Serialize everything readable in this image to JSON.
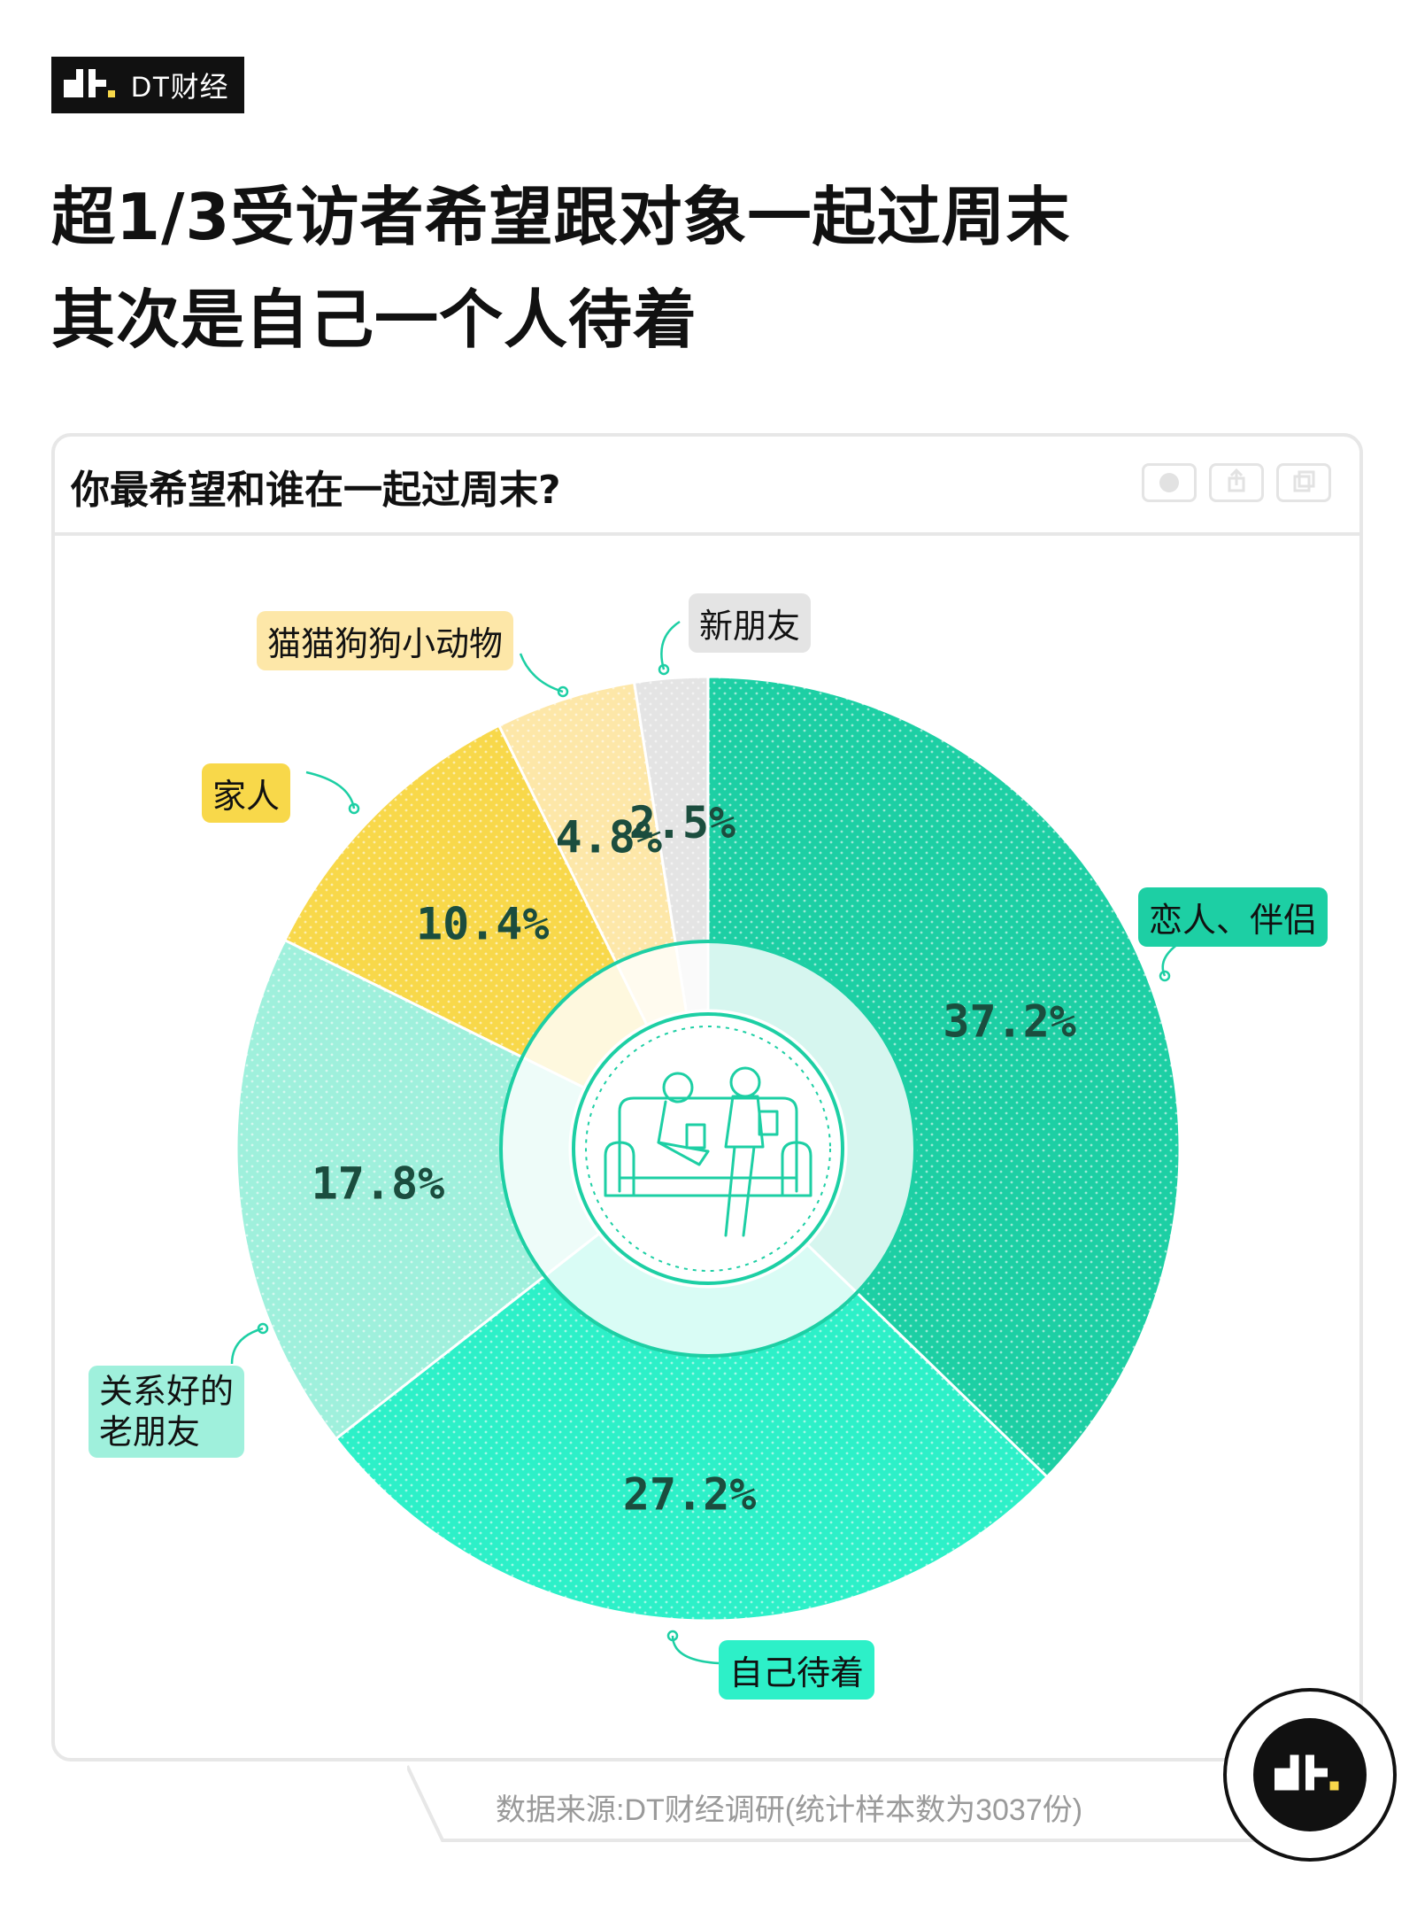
{
  "brand": {
    "name": "DT财经"
  },
  "headline": {
    "line1": "超1/3受访者希望跟对象一起过周末",
    "line2": "其次是自己一个人待着"
  },
  "card": {
    "title": "你最希望和谁在一起过周末?"
  },
  "source": "数据来源:DT财经调研(统计样本数为3037份)",
  "colors": {
    "partner": "#1dcfa4",
    "alone": "#2df0c8",
    "old_friends": "#9ff0dc",
    "family": "#f8d84a",
    "pets": "#fde7a8",
    "new_friends": "#e4e4e4"
  },
  "chart_data": {
    "type": "pie",
    "title": "你最希望和谁在一起过周末?",
    "slices": [
      {
        "label": "恋人、伴侣",
        "value": 37.2,
        "value_label": "37.2%"
      },
      {
        "label": "自己待着",
        "value": 27.2,
        "value_label": "27.2%"
      },
      {
        "label": "关系好的老朋友",
        "value": 17.8,
        "value_label": "17.8%"
      },
      {
        "label": "家人",
        "value": 10.4,
        "value_label": "10.4%"
      },
      {
        "label": "猫猫狗狗小动物",
        "value": 4.8,
        "value_label": "4.8%"
      },
      {
        "label": "新朋友",
        "value": 2.5,
        "value_label": "2.5%"
      }
    ]
  },
  "labels": {
    "partner": "恋人、伴侣",
    "alone": "自己待着",
    "old_friends_line1": "关系好的",
    "old_friends_line2": "老朋友",
    "family": "家人",
    "pets": "猫猫狗狗小动物",
    "new_friends": "新朋友"
  }
}
